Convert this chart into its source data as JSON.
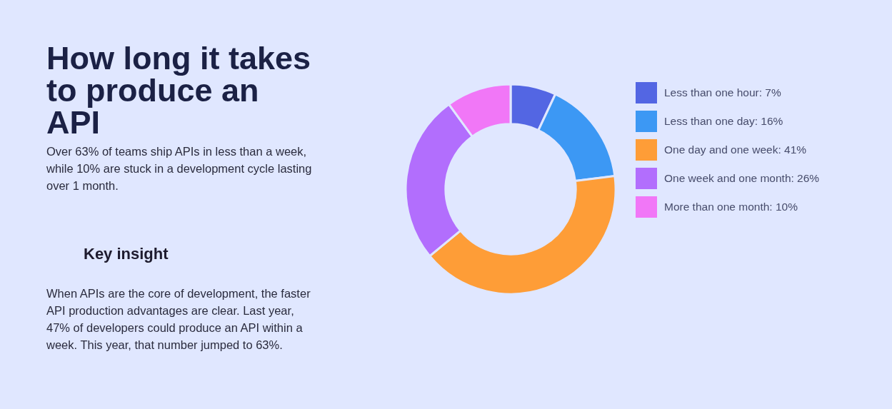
{
  "chart_data": {
    "type": "donut",
    "title": "How long it takes to produce an API",
    "subtitle": "Over 63% of teams ship APIs in less than a week, while 10% are stuck in a development cycle lasting over 1 month.",
    "annotations": [
      "Key insight",
      "When APIs are the core of development, the faster API production advantages are clear. Last year, 47% of developers could produce an API within a week. This year, that number jumped to 63%."
    ],
    "categories": [
      "Less than one hour",
      "Less than one day",
      "One day and one week",
      "One week and one month",
      "More than one month"
    ],
    "values": [
      7,
      16,
      41,
      26,
      10
    ],
    "colors": [
      "#5366e3",
      "#3c98f4",
      "#fe9d37",
      "#b26efd",
      "#f177f7"
    ],
    "value_labels": [
      "7%",
      "16%",
      "41%",
      "26%",
      "10%"
    ],
    "legend": "right"
  }
}
